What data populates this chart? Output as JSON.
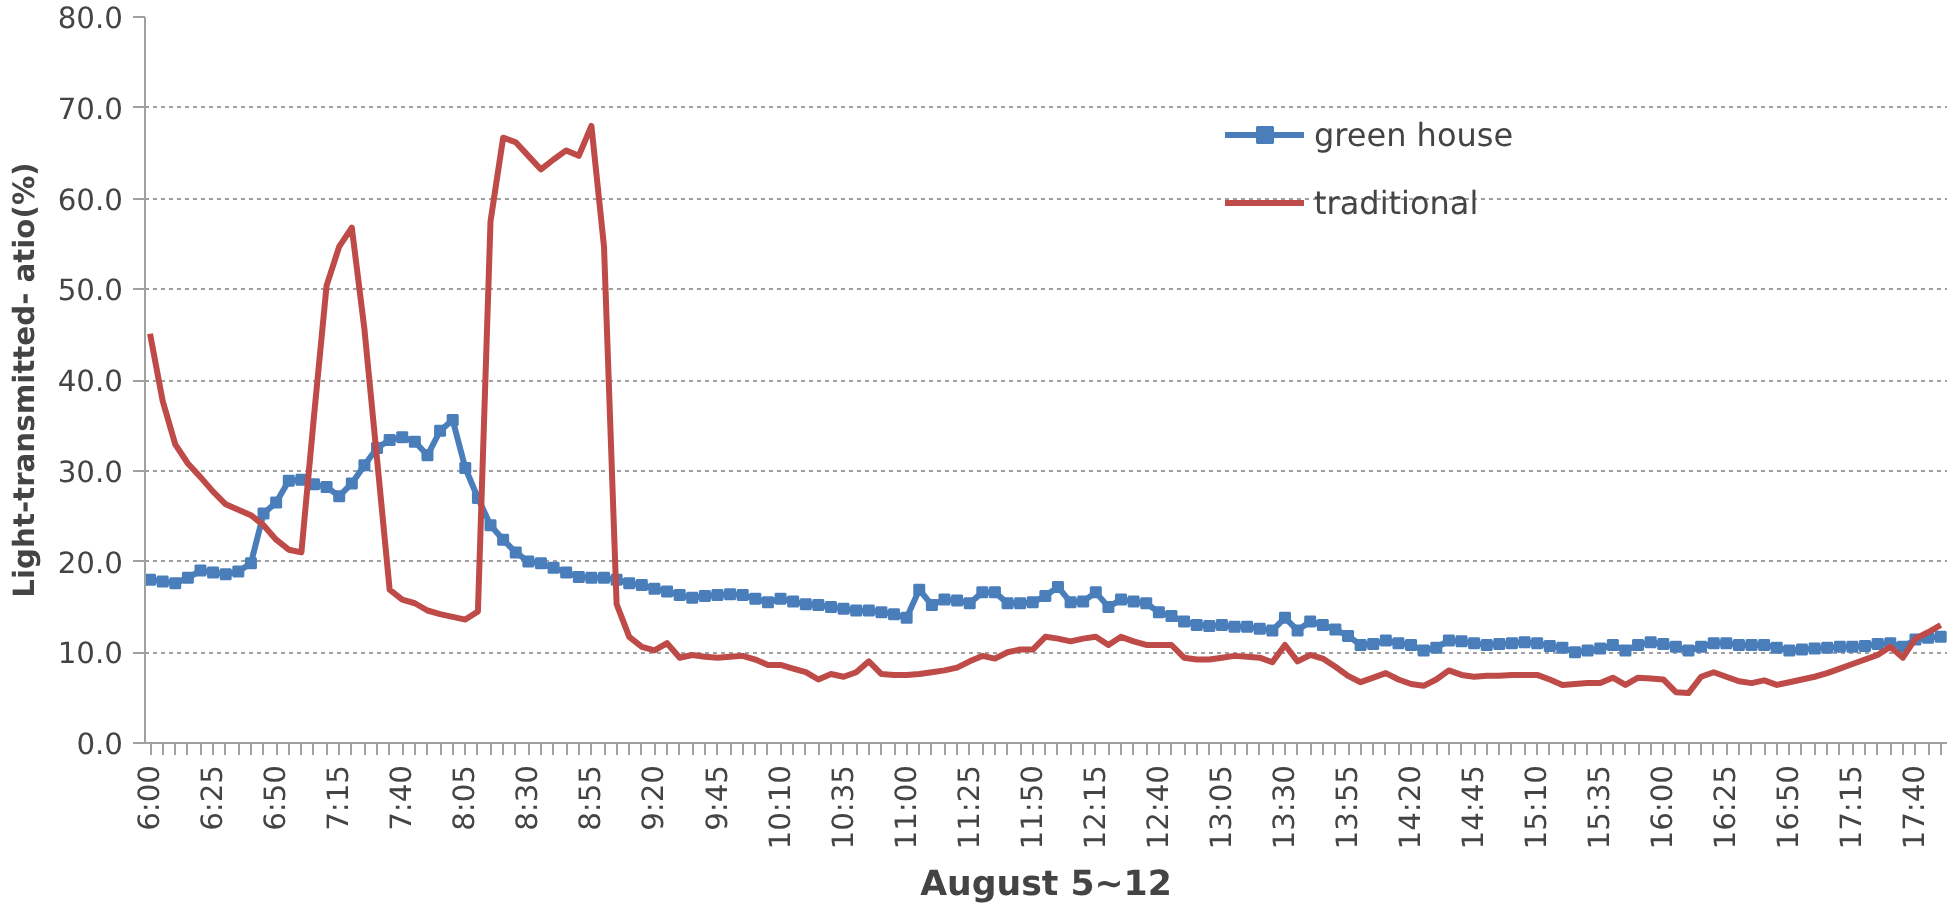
{
  "chart_data": {
    "type": "line",
    "xlabel": "August 5~12",
    "ylabel": "Light-transmitted- atio(%)",
    "categories": [
      "6:00",
      null,
      null,
      null,
      null,
      "6:25",
      null,
      null,
      null,
      null,
      "6:50",
      null,
      null,
      null,
      null,
      "7:15",
      null,
      null,
      null,
      null,
      "7:40",
      null,
      null,
      null,
      null,
      "8:05",
      null,
      null,
      null,
      null,
      "8:30",
      null,
      null,
      null,
      null,
      "8:55",
      null,
      null,
      null,
      null,
      "9:20",
      null,
      null,
      null,
      null,
      "9:45",
      null,
      null,
      null,
      null,
      "10:10",
      null,
      null,
      null,
      null,
      "10:35",
      null,
      null,
      null,
      null,
      "11:00",
      null,
      null,
      null,
      null,
      "11:25",
      null,
      null,
      null,
      null,
      "11:50",
      null,
      null,
      null,
      null,
      "12:15",
      null,
      null,
      null,
      null,
      "12:40",
      null,
      null,
      null,
      null,
      "13:05",
      null,
      null,
      null,
      null,
      "13:30",
      null,
      null,
      null,
      null,
      "13:55",
      null,
      null,
      null,
      null,
      "14:20",
      null,
      null,
      null,
      null,
      "14:45",
      null,
      null,
      null,
      null,
      "15:10",
      null,
      null,
      null,
      null,
      "15:35",
      null,
      null,
      null,
      null,
      "16:00",
      null,
      null,
      null,
      null,
      "16:25",
      null,
      null,
      null,
      null,
      "16:50",
      null,
      null,
      null,
      null,
      "17:15",
      null,
      null,
      null,
      null,
      "17:40",
      null,
      null
    ],
    "series": [
      {
        "name": "green house",
        "color": "#4a7ebb",
        "marker": "square",
        "values": [
          18.0,
          17.8,
          17.6,
          18.2,
          19.0,
          18.8,
          18.6,
          18.9,
          19.8,
          25.3,
          26.5,
          28.9,
          29.0,
          28.5,
          28.2,
          27.2,
          28.6,
          30.6,
          32.5,
          33.4,
          33.7,
          33.2,
          31.7,
          34.4,
          35.6,
          30.3,
          27.0,
          24.0,
          22.4,
          21.0,
          20.0,
          19.8,
          19.3,
          18.8,
          18.3,
          18.2,
          18.2,
          18.0,
          17.6,
          17.4,
          17.0,
          16.7,
          16.3,
          16.0,
          16.2,
          16.3,
          16.4,
          16.3,
          15.9,
          15.5,
          15.9,
          15.6,
          15.3,
          15.2,
          15.0,
          14.8,
          14.6,
          14.6,
          14.4,
          14.2,
          13.8,
          16.9,
          15.2,
          15.8,
          15.7,
          15.4,
          16.6,
          16.6,
          15.4,
          15.4,
          15.5,
          16.2,
          17.2,
          15.5,
          15.6,
          16.6,
          15.0,
          15.8,
          15.6,
          15.4,
          14.4,
          14.0,
          13.4,
          13.0,
          12.9,
          13.0,
          12.8,
          12.8,
          12.6,
          12.4,
          13.8,
          12.4,
          13.4,
          13.0,
          12.5,
          11.8,
          10.8,
          10.9,
          11.3,
          11.0,
          10.8,
          10.2,
          10.5,
          11.3,
          11.2,
          11.0,
          10.8,
          10.9,
          11.0,
          11.1,
          11.0,
          10.7,
          10.5,
          10.0,
          10.2,
          10.4,
          10.8,
          10.2,
          10.8,
          11.1,
          10.9,
          10.6,
          10.2,
          10.6,
          11.0,
          11.0,
          10.8,
          10.8,
          10.8,
          10.5,
          10.2,
          10.3,
          10.4,
          10.5,
          10.6,
          10.6,
          10.7,
          10.9,
          11.0,
          10.6,
          11.4,
          11.6,
          11.7
        ]
      },
      {
        "name": "traditional",
        "color": "#be4b48",
        "marker": "none",
        "values": [
          45.1,
          37.7,
          32.9,
          30.8,
          29.3,
          27.7,
          26.3,
          25.7,
          25.1,
          24.0,
          22.4,
          21.3,
          21.0,
          36.0,
          50.4,
          54.7,
          56.8,
          45.6,
          31.3,
          16.9,
          15.8,
          15.4,
          14.6,
          14.2,
          13.9,
          13.6,
          14.5,
          57.5,
          66.7,
          66.2,
          64.7,
          63.2,
          64.3,
          65.3,
          64.7,
          68.0,
          54.7,
          15.3,
          11.7,
          10.6,
          10.2,
          11.0,
          9.4,
          9.7,
          9.5,
          9.4,
          9.5,
          9.6,
          9.2,
          8.6,
          8.6,
          8.2,
          7.8,
          7.0,
          7.6,
          7.3,
          7.8,
          9.0,
          7.6,
          7.5,
          7.5,
          7.6,
          7.8,
          8.0,
          8.3,
          9.0,
          9.6,
          9.3,
          10.0,
          10.3,
          10.3,
          11.7,
          11.5,
          11.2,
          11.5,
          11.7,
          10.8,
          11.7,
          11.2,
          10.8,
          10.8,
          10.8,
          9.4,
          9.2,
          9.2,
          9.4,
          9.6,
          9.5,
          9.4,
          8.9,
          10.8,
          9.0,
          9.7,
          9.3,
          8.4,
          7.4,
          6.7,
          7.2,
          7.7,
          7.0,
          6.5,
          6.3,
          7.0,
          8.0,
          7.5,
          7.3,
          7.4,
          7.4,
          7.5,
          7.5,
          7.5,
          7.0,
          6.4,
          6.5,
          6.6,
          6.6,
          7.2,
          6.4,
          7.2,
          7.1,
          7.0,
          5.6,
          5.5,
          7.3,
          7.8,
          7.3,
          6.8,
          6.6,
          6.9,
          6.4,
          6.7,
          7.0,
          7.3,
          7.7,
          8.2,
          8.7,
          9.2,
          9.7,
          10.6,
          9.4,
          11.5,
          12.2,
          13.0
        ]
      }
    ],
    "ylim": [
      0,
      80
    ],
    "yticks": [
      {
        "value": 0,
        "label": "0.0"
      },
      {
        "value": 10,
        "label": "10.0"
      },
      {
        "value": 20,
        "label": "20.0"
      },
      {
        "value": 30,
        "label": "30.0"
      },
      {
        "value": 40,
        "label": "40.0"
      },
      {
        "value": 50,
        "label": "50.0"
      },
      {
        "value": 60,
        "label": "60.0"
      },
      {
        "value": 70,
        "label": "70.0"
      },
      {
        "value": 80,
        "label": "80.0"
      }
    ],
    "grid": "y",
    "legend": "top right",
    "line_style": "solid"
  }
}
